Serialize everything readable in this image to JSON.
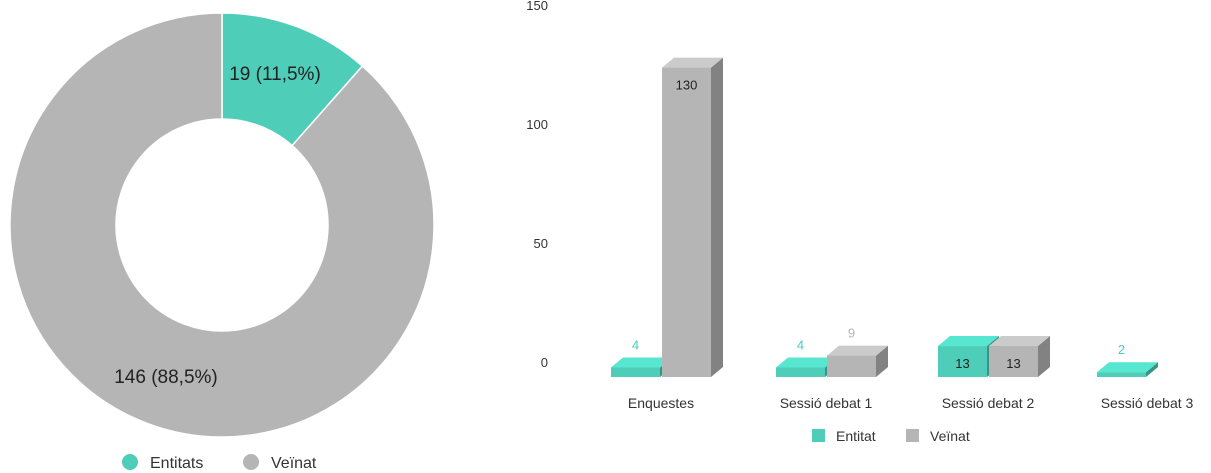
{
  "colors": {
    "teal": "#4ecdb9",
    "grey": "#b5b5b5"
  },
  "chart_data": [
    {
      "type": "pie",
      "variant": "donut",
      "slices": [
        {
          "name": "Entitats",
          "value": 19,
          "label": "19 (11,5%)",
          "color": "#4ecdb9"
        },
        {
          "name": "Veïnat",
          "value": 146,
          "label": "146 (88,5%)",
          "color": "#b5b5b5"
        }
      ],
      "legend": {
        "placement": "bottom",
        "entries": [
          "Entitats",
          "Veïnat"
        ]
      }
    },
    {
      "type": "bar",
      "style": "3d",
      "categories": [
        "Enquestes",
        "Sessió debat 1",
        "Sessió debat 2",
        "Sessió debat 3"
      ],
      "series": [
        {
          "name": "Entitat",
          "values": [
            4,
            4,
            13,
            2
          ],
          "labels": [
            "4",
            "4",
            "13",
            "2"
          ],
          "color": "#4ecdb9"
        },
        {
          "name": "Veïnat",
          "values": [
            130,
            9,
            13,
            null
          ],
          "labels": [
            "130",
            "9",
            "13",
            ""
          ],
          "color": "#b5b5b5"
        }
      ],
      "ylim": [
        0,
        150
      ],
      "yticks": [
        "0",
        "50",
        "100",
        "150"
      ],
      "legend": {
        "placement": "bottom",
        "entries": [
          "Entitat",
          "Veïnat"
        ]
      }
    }
  ]
}
